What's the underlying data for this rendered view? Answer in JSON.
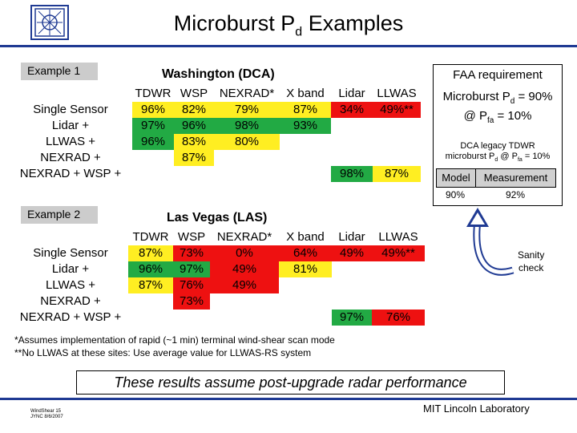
{
  "title": {
    "main": "Microburst P",
    "sub": "d",
    "rest": " Examples"
  },
  "example1": {
    "label": "Example 1",
    "site": "Washington (DCA)"
  },
  "example2": {
    "label": "Example 2",
    "site": "Las Vegas (LAS)"
  },
  "headers": [
    "TDWR",
    "WSP",
    "NEXRAD*",
    "X band",
    "Lidar",
    "LLWAS"
  ],
  "row_labels": [
    "Single Sensor",
    "Lidar +",
    "LLWAS +",
    "NEXRAD +",
    "NEXRAD + WSP +"
  ],
  "dca": {
    "tdwr": [
      "96%",
      "97%",
      "96%"
    ],
    "wsp": [
      "82%",
      "96%",
      "83%",
      "87%"
    ],
    "nexrad": [
      "79%",
      "98%",
      "80%"
    ],
    "xband": [
      "87%",
      "93%"
    ],
    "lidar": [
      "34%",
      "98%"
    ],
    "llwas": [
      "49%**",
      "87%"
    ]
  },
  "las": {
    "tdwr": [
      "87%",
      "96%",
      "87%"
    ],
    "wsp": [
      "73%",
      "97%",
      "76%",
      "73%"
    ],
    "nexrad": [
      "0%",
      "49%",
      "49%"
    ],
    "xband": [
      "64%",
      "81%"
    ],
    "lidar": [
      "49%",
      "97%"
    ],
    "llwas": [
      "49%**",
      "76%"
    ]
  },
  "faa": {
    "heading": "FAA requirement",
    "req_line1_a": "Microburst P",
    "req_line1_sub": "d",
    "req_line1_b": " = 90%",
    "req_line2_a": "@ P",
    "req_line2_sub": "fa",
    "req_line2_b": " = 10%",
    "legacy_line1": "DCA legacy TDWR",
    "legacy_line2_a": "microburst P",
    "legacy_line2_sub": "d",
    "legacy_line2_b": " @ P",
    "legacy_line2_sub2": "fa",
    "legacy_line2_c": " = 10%",
    "model_header": "Model",
    "measurement_header": "Measurement",
    "model_value": "90%",
    "measurement_value": "92%"
  },
  "sanity": {
    "line1": "Sanity",
    "line2": "check"
  },
  "footnotes": [
    "*Assumes implementation of rapid (~1 min) terminal wind-shear scan mode",
    "**No LLWAS at these sites: Use average value for LLWAS-RS system"
  ],
  "banner": "These results assume post-upgrade radar performance",
  "footer": {
    "left_line1": "WindShear 15",
    "left_line2": "JYNC 8/6/2007",
    "lab": "MIT Lincoln Laboratory"
  },
  "colors": {
    "green": "#22aa44",
    "yellow": "#ffee22",
    "red": "#ee1111",
    "accent": "#1f3a93"
  }
}
